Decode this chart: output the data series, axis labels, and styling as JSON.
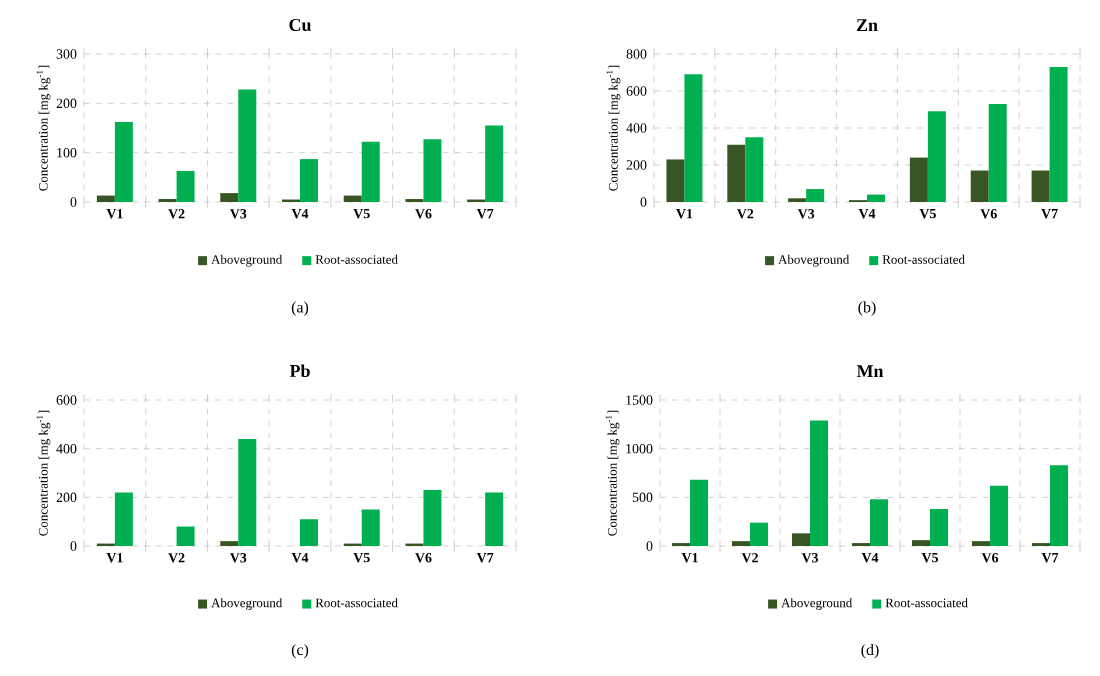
{
  "chart_data": [
    {
      "type": "bar",
      "title": "Cu",
      "ylabel": "Concentration [mg kg$^{-1}$]",
      "categories": [
        "V1",
        "V2",
        "V3",
        "V4",
        "V5",
        "V6",
        "V7"
      ],
      "series": [
        {
          "name": "Aboveground",
          "color": "#375623",
          "values": [
            13,
            6,
            18,
            5,
            13,
            6,
            5
          ]
        },
        {
          "name": "Root-associated",
          "color": "#00b050",
          "values": [
            162,
            63,
            228,
            87,
            122,
            127,
            155
          ]
        }
      ],
      "ylim": [
        0,
        300
      ],
      "yticks": [
        0,
        100,
        200,
        300
      ],
      "grid": true,
      "legend": "bottom",
      "annotations": [
        "(a)"
      ]
    },
    {
      "type": "bar",
      "title": "Zn",
      "ylabel": "Concentration [mg kg$^{-1}$]",
      "categories": [
        "V1",
        "V2",
        "V3",
        "V4",
        "V5",
        "V6",
        "V7"
      ],
      "series": [
        {
          "name": "Aboveground",
          "color": "#375623",
          "values": [
            230,
            310,
            20,
            10,
            240,
            170,
            170
          ]
        },
        {
          "name": "Root-associated",
          "color": "#00b050",
          "values": [
            690,
            350,
            70,
            40,
            490,
            530,
            730
          ]
        }
      ],
      "ylim": [
        0,
        800
      ],
      "yticks": [
        0,
        200,
        400,
        600,
        800
      ],
      "grid": true,
      "legend": "bottom",
      "annotations": [
        "(b)"
      ]
    },
    {
      "type": "bar",
      "title": "Pb",
      "ylabel": "Concentration [mg kg$^{-1}$]",
      "categories": [
        "V1",
        "V2",
        "V3",
        "V4",
        "V5",
        "V6",
        "V7"
      ],
      "series": [
        {
          "name": "Aboveground",
          "color": "#375623",
          "values": [
            10,
            0,
            20,
            0,
            10,
            10,
            0
          ]
        },
        {
          "name": "Root-associated",
          "color": "#00b050",
          "values": [
            220,
            80,
            440,
            110,
            150,
            230,
            220
          ]
        }
      ],
      "ylim": [
        0,
        600
      ],
      "yticks": [
        0,
        200,
        400,
        600
      ],
      "grid": true,
      "legend": "bottom",
      "annotations": [
        "(c)"
      ]
    },
    {
      "type": "bar",
      "title": "Mn",
      "ylabel": "Concentration [mg kg$^{-1}$]",
      "categories": [
        "V1",
        "V2",
        "V3",
        "V4",
        "V5",
        "V6",
        "V7"
      ],
      "series": [
        {
          "name": "Aboveground",
          "color": "#375623",
          "values": [
            30,
            50,
            130,
            30,
            60,
            50,
            30
          ]
        },
        {
          "name": "Root-associated",
          "color": "#00b050",
          "values": [
            680,
            240,
            1290,
            480,
            380,
            620,
            830
          ]
        }
      ],
      "ylim": [
        0,
        1500
      ],
      "yticks": [
        0,
        500,
        1000,
        1500
      ],
      "grid": true,
      "legend": "bottom",
      "annotations": [
        "(d)"
      ]
    }
  ]
}
